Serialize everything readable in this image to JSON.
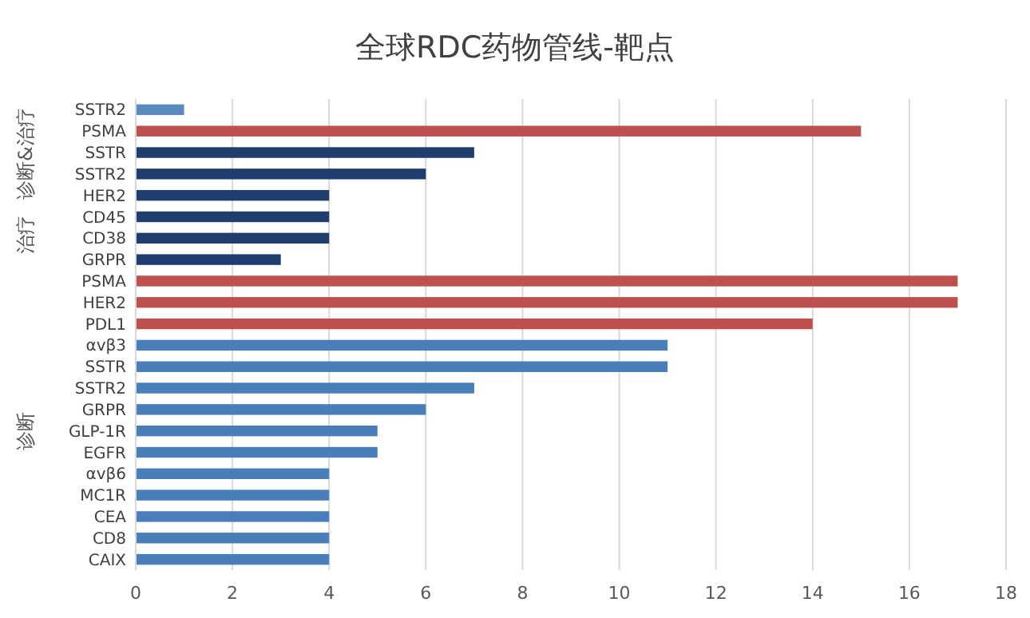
{
  "chart_data": {
    "type": "bar",
    "orientation": "horizontal",
    "title": "全球RDC药物管线-靶点",
    "categories": [
      "SSTR2",
      "PSMA",
      "SSTR",
      "SSTR2",
      "HER2",
      "CD45",
      "CD38",
      "GRPR",
      "PSMA",
      "HER2",
      "PDL1",
      "αvβ3",
      "SSTR",
      "SSTR2",
      "GRPR",
      "GLP-1R",
      "EGFR",
      "αvβ6",
      "MC1R",
      "CEA",
      "CD8",
      "CAIX"
    ],
    "values": [
      1,
      15,
      7,
      6,
      4,
      4,
      4,
      3,
      17,
      17,
      14,
      11,
      11,
      7,
      6,
      5,
      5,
      4,
      4,
      4,
      4,
      4
    ],
    "colors": [
      "#5b8ac0",
      "#c0504d",
      "#1f3e6e",
      "#1f3e6e",
      "#1f3e6e",
      "#1f3e6e",
      "#1f3e6e",
      "#1f3e6e",
      "#c0504d",
      "#c0504d",
      "#c0504d",
      "#4a7ebb",
      "#4a7ebb",
      "#4a7ebb",
      "#4a7ebb",
      "#4a7ebb",
      "#4a7ebb",
      "#4a7ebb",
      "#4a7ebb",
      "#4a7ebb",
      "#4a7ebb",
      "#4a7ebb"
    ],
    "xlim": [
      0,
      18
    ],
    "xticks": [
      0,
      2,
      4,
      6,
      8,
      10,
      12,
      14,
      16,
      18
    ],
    "grid": "x",
    "annotations": [
      "诊断&治疗",
      "治疗",
      "诊断"
    ]
  }
}
